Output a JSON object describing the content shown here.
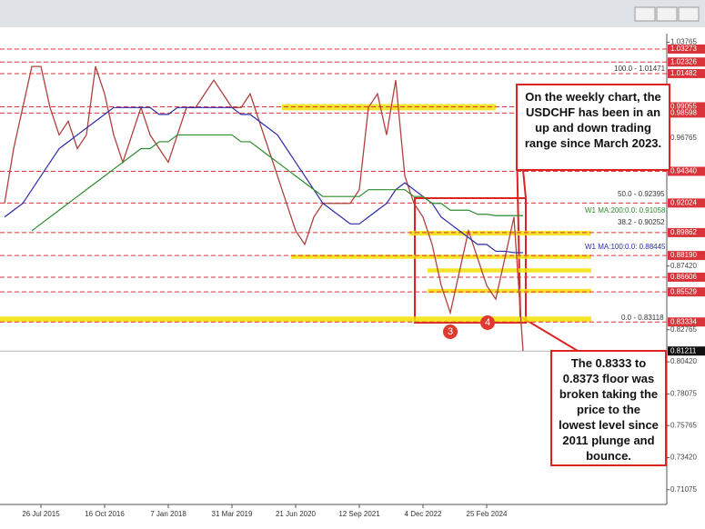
{
  "chart_data": {
    "type": "line",
    "categories": [
      null,
      null,
      null,
      null,
      "26 Jul 2015",
      null,
      null,
      null,
      null,
      null,
      null,
      "16 Oct 2016",
      null,
      null,
      null,
      null,
      null,
      null,
      "7 Jan 2018",
      null,
      null,
      null,
      null,
      null,
      null,
      "31 Mar 2019",
      null,
      null,
      null,
      null,
      null,
      null,
      "21 Jun 2020",
      null,
      null,
      null,
      null,
      null,
      null,
      "12 Sep 2021",
      null,
      null,
      null,
      null,
      null,
      null,
      "4 Dec 2022",
      null,
      null,
      null,
      null,
      null,
      null,
      "25 Feb 2024",
      null,
      null,
      null,
      null
    ],
    "series": [
      {
        "color": "#b0413e",
        "values": [
          0.92,
          0.96,
          0.99,
          1.02,
          1.02,
          0.99,
          0.97,
          0.98,
          0.96,
          0.97,
          1.02,
          1.0,
          0.97,
          0.95,
          0.97,
          0.99,
          0.97,
          0.96,
          0.95,
          0.97,
          0.99,
          0.99,
          1.0,
          1.01,
          1.0,
          0.99,
          0.99,
          1.0,
          0.98,
          0.96,
          0.94,
          0.92,
          0.9,
          0.89,
          0.91,
          0.92,
          0.92,
          0.92,
          0.92,
          0.93,
          0.99,
          1.0,
          0.97,
          1.01,
          0.94,
          0.92,
          0.91,
          0.89,
          0.86,
          0.84,
          0.87,
          0.9,
          0.88,
          0.86,
          0.85,
          0.88,
          0.91,
          0.812
        ]
      },
      {
        "color": "#2a2aa8",
        "values": [
          0.91,
          0.915,
          0.92,
          0.93,
          0.94,
          0.95,
          0.96,
          0.965,
          0.97,
          0.975,
          0.98,
          0.985,
          0.99,
          0.99,
          0.99,
          0.99,
          0.99,
          0.985,
          0.985,
          0.99,
          0.99,
          0.99,
          0.99,
          0.99,
          0.99,
          0.99,
          0.985,
          0.985,
          0.98,
          0.975,
          0.97,
          0.96,
          0.95,
          0.94,
          0.93,
          0.92,
          0.915,
          0.91,
          0.905,
          0.905,
          0.91,
          0.915,
          0.92,
          0.93,
          0.935,
          0.93,
          0.925,
          0.92,
          0.91,
          0.905,
          0.9,
          0.895,
          0.89,
          0.89,
          0.885,
          0.885,
          0.884,
          0.884
        ]
      },
      {
        "color": "#2e8b2e",
        "values": [
          null,
          null,
          null,
          0.9,
          0.905,
          0.91,
          0.915,
          0.92,
          0.925,
          0.93,
          0.935,
          0.94,
          0.945,
          0.95,
          0.955,
          0.96,
          0.96,
          0.965,
          0.965,
          0.97,
          0.97,
          0.97,
          0.97,
          0.97,
          0.97,
          0.97,
          0.965,
          0.965,
          0.96,
          0.955,
          0.95,
          0.945,
          0.94,
          0.935,
          0.93,
          0.925,
          0.925,
          0.925,
          0.925,
          0.925,
          0.93,
          0.93,
          0.93,
          0.93,
          0.93,
          0.925,
          0.925,
          0.92,
          0.92,
          0.915,
          0.915,
          0.915,
          0.912,
          0.912,
          0.911,
          0.911,
          0.911,
          0.911
        ]
      }
    ],
    "ylim": [
      0.7,
      1.044
    ],
    "yticks": [
      1.03765,
      0.96765,
      {
        "value": 0.8742,
        "label": "0.87420"
      },
      0.82765,
      {
        "value": 0.8042,
        "label": "0.80420"
      },
      0.78075,
      0.75765,
      {
        "value": 0.7342,
        "label": "0.73420"
      },
      0.71075
    ],
    "levels": [
      1.03273,
      1.02326,
      1.01482,
      0.99055,
      0.98598,
      {
        "value": 0.9434,
        "label": "0.94340"
      },
      0.92024,
      0.89862,
      {
        "value": 0.8819,
        "label": "0.88190"
      },
      0.86606,
      0.85529,
      0.83334
    ],
    "level_color": "#d9343a",
    "current_price": 0.81211,
    "zones": [
      [
        0.988,
        0.9925
      ],
      [
        0.8965,
        0.8999
      ],
      [
        0.8795,
        0.8825
      ],
      [
        0.8695,
        0.8725
      ],
      [
        0.8545,
        0.8575
      ],
      [
        0.8333,
        0.8373
      ]
    ],
    "zone_color": "#f5e100",
    "annotations": [
      "100.0 - 1.01471",
      "50.0 - 0.92395",
      "W1 MA:200:0.0: 0.91058",
      "38.2 - 0.90252",
      "W1 MA:100:0.0: 0.88445",
      "0.0 - 0.83118"
    ],
    "callouts": [
      "On the weekly chart, the USDCHF has been in an up and down trading range since March 2023.",
      "The 0.8333 to 0.8373 floor was broken taking the price to the lowest level since 2011 plunge and bounce."
    ],
    "markers": [
      "3",
      "4"
    ]
  }
}
